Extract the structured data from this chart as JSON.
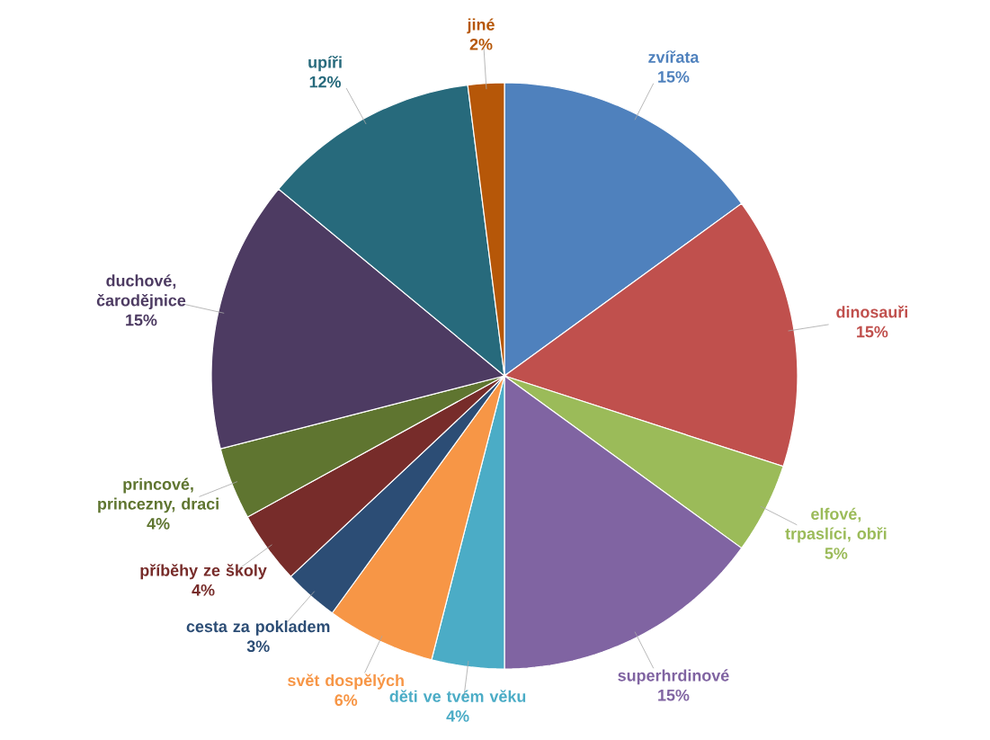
{
  "chart_data": {
    "type": "pie",
    "categories": [
      "zvířata",
      "dinosauři",
      "elfové, trpaslíci, obři",
      "superhrdinové",
      "děti ve tvém věku",
      "svět dospělých",
      "cesta za pokladem",
      "příběhy ze školy",
      "princové, princezny, draci",
      "duchové, čarodějnice",
      "upíři",
      "jiné"
    ],
    "values": [
      15,
      15,
      5,
      15,
      4,
      6,
      3,
      4,
      4,
      15,
      12,
      2
    ],
    "value_labels": [
      "15%",
      "15%",
      "5%",
      "15%",
      "4%",
      "6%",
      "3%",
      "4%",
      "4%",
      "15%",
      "12%",
      "2%"
    ],
    "colors": [
      "#4f81bd",
      "#c0504d",
      "#9bbb59",
      "#8064a2",
      "#4bacc6",
      "#f79646",
      "#2c4d75",
      "#772c2a",
      "#5f7530",
      "#4d3b62",
      "#276a7c",
      "#b65708"
    ]
  }
}
